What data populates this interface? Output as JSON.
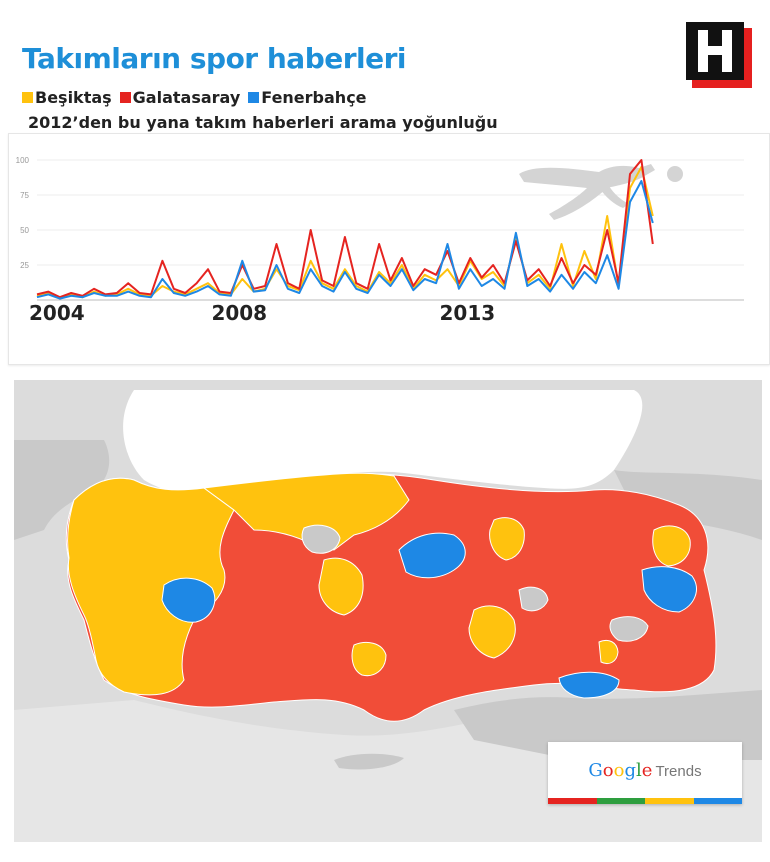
{
  "header": {
    "title": "Takımların spor haberleri",
    "subtitle": "2012’den bu yana takım haberleri arama yoğunluğu"
  },
  "logo": {
    "letter": "H",
    "colors": {
      "dark": "#111111",
      "accent": "#e5201f"
    }
  },
  "legend": [
    {
      "label": "Beşiktaş",
      "color": "#ffc20e"
    },
    {
      "label": "Galatasaray",
      "color": "#e52420"
    },
    {
      "label": "Fenerbahçe",
      "color": "#1e88e5"
    }
  ],
  "chart_data": {
    "type": "line",
    "x": [
      2004.0,
      2004.25,
      2004.5,
      2004.75,
      2005.0,
      2005.25,
      2005.5,
      2005.75,
      2006.0,
      2006.25,
      2006.5,
      2006.75,
      2007.0,
      2007.25,
      2007.5,
      2007.75,
      2008.0,
      2008.25,
      2008.5,
      2008.75,
      2009.0,
      2009.25,
      2009.5,
      2009.75,
      2010.0,
      2010.25,
      2010.5,
      2010.75,
      2011.0,
      2011.25,
      2011.5,
      2011.75,
      2012.0,
      2012.25,
      2012.5,
      2012.75,
      2013.0,
      2013.25,
      2013.5,
      2013.75,
      2014.0,
      2014.25,
      2014.5,
      2014.75,
      2015.0,
      2015.25,
      2015.5,
      2015.75,
      2016.0,
      2016.25,
      2016.5,
      2016.75,
      2017.0,
      2017.25,
      2017.5
    ],
    "series": [
      {
        "name": "Beşiktaş",
        "color": "#ffc20e",
        "values": [
          3,
          5,
          2,
          4,
          2,
          6,
          3,
          4,
          8,
          4,
          3,
          10,
          6,
          4,
          8,
          12,
          5,
          4,
          15,
          6,
          8,
          22,
          10,
          7,
          28,
          12,
          8,
          22,
          10,
          6,
          20,
          12,
          25,
          8,
          18,
          14,
          22,
          10,
          28,
          15,
          20,
          10,
          45,
          12,
          18,
          8,
          40,
          10,
          35,
          15,
          60,
          10,
          80,
          95,
          60
        ]
      },
      {
        "name": "Galatasaray",
        "color": "#e52420",
        "values": [
          4,
          6,
          2,
          5,
          3,
          8,
          4,
          5,
          12,
          5,
          4,
          28,
          8,
          5,
          12,
          22,
          6,
          5,
          25,
          8,
          10,
          40,
          12,
          8,
          50,
          14,
          10,
          45,
          12,
          8,
          40,
          14,
          30,
          10,
          22,
          18,
          35,
          12,
          30,
          16,
          25,
          12,
          42,
          14,
          22,
          10,
          30,
          12,
          25,
          18,
          50,
          12,
          90,
          100,
          40
        ]
      },
      {
        "name": "Fenerbahçe",
        "color": "#1e88e5",
        "values": [
          2,
          4,
          1,
          3,
          2,
          5,
          3,
          3,
          6,
          3,
          2,
          15,
          5,
          3,
          6,
          10,
          4,
          3,
          28,
          6,
          7,
          25,
          8,
          5,
          22,
          10,
          6,
          20,
          8,
          5,
          18,
          10,
          22,
          7,
          15,
          12,
          40,
          8,
          22,
          10,
          15,
          8,
          48,
          10,
          15,
          6,
          18,
          8,
          20,
          12,
          32,
          8,
          70,
          85,
          55
        ]
      }
    ],
    "yticks": [
      25,
      50,
      75,
      100
    ],
    "xticks": [
      "2004",
      "2008",
      "2013"
    ],
    "xtick_values": [
      2004,
      2008,
      2013
    ],
    "xlim": [
      2004,
      2019.5
    ],
    "ylim": [
      0,
      100
    ]
  },
  "map": {
    "colors": {
      "land": "#f7f7f7",
      "neighbors": "#c8c8c8",
      "sea": "#dcdcdc",
      "besiktas": "#ffc20e",
      "galatasaray": "#f14d38",
      "fenerbahce": "#1e88e5"
    }
  },
  "badge": {
    "google": "Google",
    "trends": "Trends",
    "bar_colors": [
      "#e52420",
      "#2e9e3f",
      "#ffc20e",
      "#1e88e5"
    ]
  }
}
